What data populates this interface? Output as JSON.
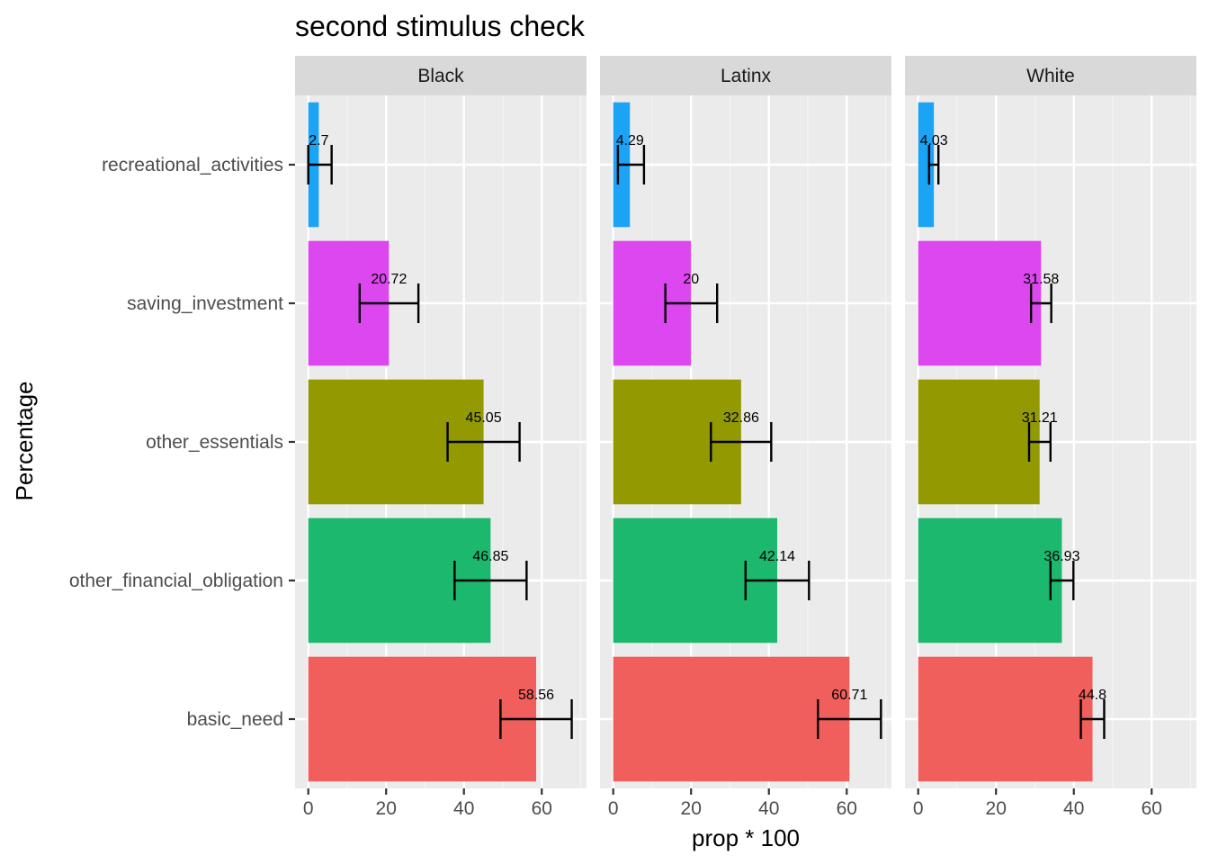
{
  "chart_data": {
    "type": "bar",
    "orientation": "horizontal",
    "title": "second stimulus check",
    "xlabel": "prop * 100",
    "ylabel": "Percentage",
    "xlim": [
      -3.4,
      71.5
    ],
    "xticks": [
      0,
      20,
      40,
      60
    ],
    "categories": [
      "basic_need",
      "other_financial_obligation",
      "other_essentials",
      "saving_investment",
      "recreational_activities"
    ],
    "colors": {
      "basic_need": "#F15F5C",
      "other_financial_obligation": "#1BB86E",
      "other_essentials": "#939901",
      "saving_investment": "#DD47F0",
      "recreational_activities": "#1BA3F5"
    },
    "grid": true,
    "legend": "none",
    "panels": [
      {
        "name": "Black",
        "values": [
          58.56,
          46.85,
          45.05,
          20.72,
          2.7
        ],
        "labels": [
          "58.56",
          "46.85",
          "45.05",
          "20.72",
          "2.7"
        ],
        "error_low": [
          49.4,
          37.6,
          35.8,
          13.2,
          0
        ],
        "error_high": [
          67.7,
          56.1,
          54.3,
          28.3,
          6.0
        ]
      },
      {
        "name": "Latinx",
        "values": [
          60.71,
          42.14,
          32.86,
          20,
          4.29
        ],
        "labels": [
          "60.71",
          "42.14",
          "32.86",
          "20",
          "4.29"
        ],
        "error_low": [
          52.6,
          34.0,
          25.1,
          13.4,
          1.2
        ],
        "error_high": [
          68.8,
          50.3,
          40.6,
          26.7,
          7.9
        ]
      },
      {
        "name": "White",
        "values": [
          44.8,
          36.93,
          31.21,
          31.58,
          4.03
        ],
        "labels": [
          "44.8",
          "36.93",
          "31.21",
          "31.58",
          "4.03"
        ],
        "error_low": [
          41.8,
          34.0,
          28.5,
          29.0,
          2.8
        ],
        "error_high": [
          47.8,
          39.9,
          34.0,
          34.2,
          5.2
        ]
      }
    ]
  }
}
